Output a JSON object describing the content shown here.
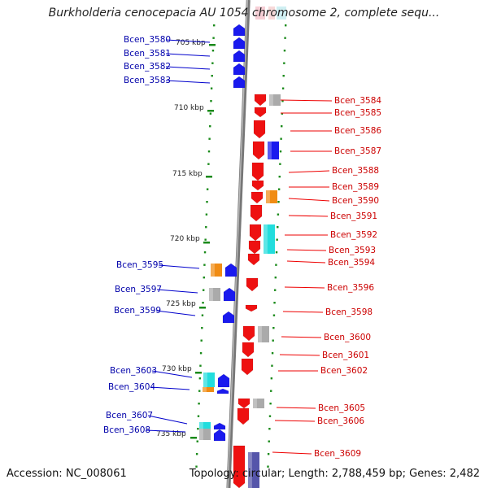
{
  "title": "Burkholderia cenocepacia AU 1054 chromosome 2, complete sequ...",
  "accession": "Accession: NC_008061",
  "topology": "Topology: circular; Length: 2,788,459 bp; Genes: 2,482",
  "colors": {
    "forward": "#1a1aee",
    "reverse": "#ee1111",
    "orange": "#f08c14",
    "gray": "#aaaaaa",
    "cyan": "#22dddd",
    "backbone": "#999999",
    "tick": "#1a8a1a"
  },
  "ticks": [
    {
      "label": "705 kbp"
    },
    {
      "label": "710 kbp"
    },
    {
      "label": "715 kbp"
    },
    {
      "label": "720 kbp"
    },
    {
      "label": "725 kbp"
    },
    {
      "label": "730 kbp"
    },
    {
      "label": "735 kbp"
    }
  ],
  "genes": [
    {
      "label": "Bcen_3580",
      "strand": "forward"
    },
    {
      "label": "Bcen_3581",
      "strand": "forward"
    },
    {
      "label": "Bcen_3582",
      "strand": "forward"
    },
    {
      "label": "Bcen_3583",
      "strand": "forward"
    },
    {
      "label": "Bcen_3584",
      "strand": "reverse"
    },
    {
      "label": "Bcen_3585",
      "strand": "reverse"
    },
    {
      "label": "Bcen_3586",
      "strand": "reverse"
    },
    {
      "label": "Bcen_3587",
      "strand": "reverse"
    },
    {
      "label": "Bcen_3588",
      "strand": "reverse"
    },
    {
      "label": "Bcen_3589",
      "strand": "reverse"
    },
    {
      "label": "Bcen_3590",
      "strand": "reverse"
    },
    {
      "label": "Bcen_3591",
      "strand": "reverse"
    },
    {
      "label": "Bcen_3592",
      "strand": "reverse"
    },
    {
      "label": "Bcen_3593",
      "strand": "reverse"
    },
    {
      "label": "Bcen_3594",
      "strand": "reverse"
    },
    {
      "label": "Bcen_3595",
      "strand": "forward"
    },
    {
      "label": "Bcen_3596",
      "strand": "reverse"
    },
    {
      "label": "Bcen_3597",
      "strand": "forward"
    },
    {
      "label": "Bcen_3598",
      "strand": "reverse"
    },
    {
      "label": "Bcen_3599",
      "strand": "forward"
    },
    {
      "label": "Bcen_3600",
      "strand": "reverse"
    },
    {
      "label": "Bcen_3601",
      "strand": "reverse"
    },
    {
      "label": "Bcen_3602",
      "strand": "reverse"
    },
    {
      "label": "Bcen_3603",
      "strand": "forward"
    },
    {
      "label": "Bcen_3604",
      "strand": "forward"
    },
    {
      "label": "Bcen_3605",
      "strand": "reverse"
    },
    {
      "label": "Bcen_3606",
      "strand": "reverse"
    },
    {
      "label": "Bcen_3607",
      "strand": "forward"
    },
    {
      "label": "Bcen_3608",
      "strand": "forward"
    },
    {
      "label": "Bcen_3609",
      "strand": "reverse"
    }
  ]
}
